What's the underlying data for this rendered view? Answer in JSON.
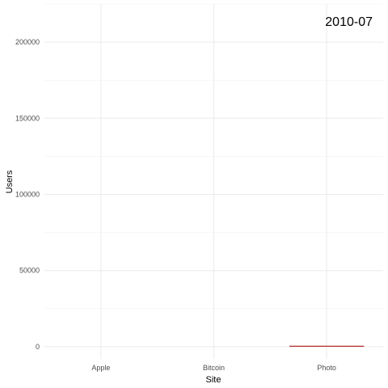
{
  "chart_data": {
    "type": "bar",
    "xlabel": "Site",
    "ylabel": "Users",
    "categories": [
      "Apple",
      "Bitcoin",
      "Photo"
    ],
    "values": [
      0,
      0,
      300
    ],
    "ylim": [
      -8000,
      225000
    ],
    "yticks": [
      0,
      50000,
      100000,
      150000,
      200000
    ],
    "ytick_labels": [
      "0",
      "50000",
      "100000",
      "150000",
      "200000"
    ],
    "grid": true,
    "bar_color": "#b22222",
    "annotation": "2010-07"
  }
}
